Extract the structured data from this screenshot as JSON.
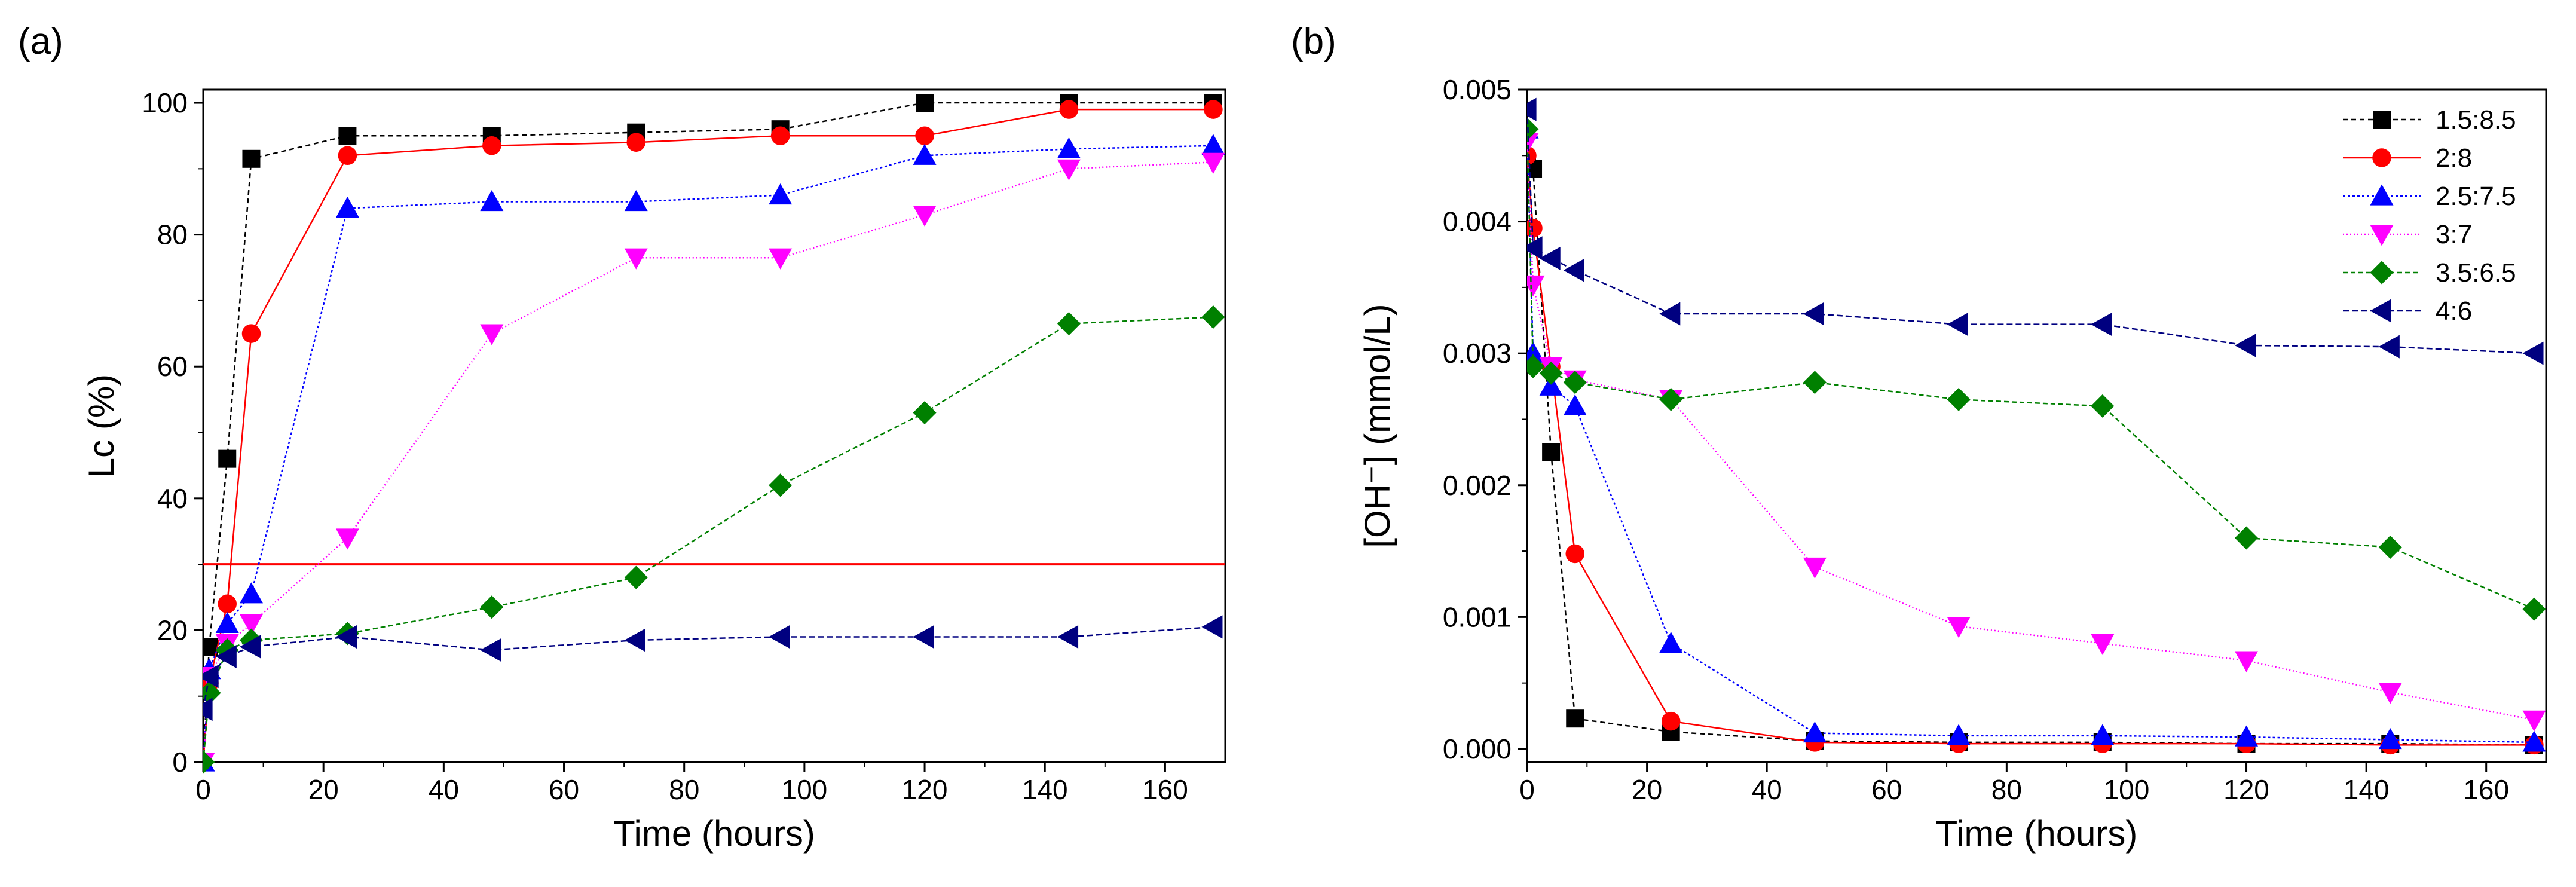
{
  "chart_data": [
    {
      "type": "line",
      "panel_label": "(a)",
      "xlabel": "Time (hours)",
      "ylabel": "Lc (%)",
      "xlim": [
        0,
        170
      ],
      "ylim": [
        0,
        102
      ],
      "xticks": [
        0,
        20,
        40,
        60,
        80,
        100,
        120,
        140,
        160
      ],
      "yticks": [
        0,
        20,
        40,
        60,
        80,
        100
      ],
      "reference_line": {
        "y": 30,
        "color": "#ff0000"
      },
      "series": [
        {
          "name": "1.5:8.5",
          "color": "#000000",
          "marker": "square",
          "dash": "8,6",
          "x": [
            0,
            1,
            4,
            8,
            24,
            48,
            72,
            96,
            120,
            144,
            168
          ],
          "y": [
            0,
            17.5,
            46,
            91.5,
            95,
            95,
            95.5,
            96,
            100,
            100,
            100
          ]
        },
        {
          "name": "2:8",
          "color": "#ff0000",
          "marker": "circle",
          "dash": "",
          "x": [
            0,
            1,
            4,
            8,
            24,
            48,
            72,
            96,
            120,
            144,
            168
          ],
          "y": [
            0,
            12,
            24,
            65,
            92,
            93.5,
            94,
            95,
            95,
            99,
            99
          ]
        },
        {
          "name": "2.5:7.5",
          "color": "#0000ff",
          "marker": "triangle-up",
          "dash": "4,4",
          "x": [
            0,
            1,
            4,
            8,
            24,
            48,
            72,
            96,
            120,
            144,
            168
          ],
          "y": [
            0,
            14,
            21,
            25.5,
            84,
            85,
            85,
            86,
            92,
            93,
            93.5
          ]
        },
        {
          "name": "3:7",
          "color": "#ff00ff",
          "marker": "triangle-down",
          "dash": "2,4",
          "x": [
            0,
            1,
            4,
            8,
            24,
            48,
            72,
            96,
            120,
            144,
            168
          ],
          "y": [
            0,
            13,
            18,
            21,
            34,
            65,
            76.5,
            76.5,
            83,
            90,
            91
          ]
        },
        {
          "name": "3.5:6.5",
          "color": "#008000",
          "marker": "diamond",
          "dash": "8,5",
          "x": [
            0,
            1,
            4,
            8,
            24,
            48,
            72,
            96,
            120,
            144,
            168
          ],
          "y": [
            0,
            10.5,
            17,
            18.5,
            19.5,
            23.5,
            28,
            42,
            53,
            66.5,
            67.5
          ]
        },
        {
          "name": "4:6",
          "color": "#000080",
          "marker": "triangle-left",
          "dash": "10,5",
          "x": [
            0,
            1,
            4,
            8,
            24,
            48,
            72,
            96,
            120,
            144,
            168
          ],
          "y": [
            8,
            13,
            16,
            17.5,
            19,
            17,
            18.5,
            19,
            19,
            19,
            20.5
          ]
        }
      ]
    },
    {
      "type": "line",
      "panel_label": "(b)",
      "xlabel": "Time (hours)",
      "ylabel": "[OH⁻] (mmol/L)",
      "xlim": [
        0,
        170
      ],
      "ylim": [
        -0.0001,
        0.005
      ],
      "xticks": [
        0,
        20,
        40,
        60,
        80,
        100,
        120,
        140,
        160
      ],
      "yticks": [
        0.0,
        0.001,
        0.002,
        0.003,
        0.004,
        0.005
      ],
      "ytick_labels": [
        "0.000",
        "0.001",
        "0.002",
        "0.003",
        "0.004",
        "0.005"
      ],
      "legend_position": "top-right",
      "series": [
        {
          "name": "1.5:8.5",
          "color": "#000000",
          "marker": "square",
          "dash": "8,6",
          "x": [
            0,
            1,
            4,
            8,
            24,
            48,
            72,
            96,
            120,
            144,
            168
          ],
          "y": [
            0.00445,
            0.0044,
            0.00225,
            0.00023,
            0.00013,
            6e-05,
            5e-05,
            5e-05,
            4e-05,
            4e-05,
            3e-05
          ]
        },
        {
          "name": "2:8",
          "color": "#ff0000",
          "marker": "circle",
          "dash": "",
          "x": [
            0,
            1,
            4,
            8,
            24,
            48,
            72,
            96,
            120,
            144,
            168
          ],
          "y": [
            0.0045,
            0.00395,
            0.0029,
            0.00148,
            0.00021,
            5e-05,
            4e-05,
            4e-05,
            4e-05,
            3e-05,
            3e-05
          ]
        },
        {
          "name": "2.5:7.5",
          "color": "#0000ff",
          "marker": "triangle-up",
          "dash": "4,4",
          "x": [
            0,
            1,
            4,
            8,
            24,
            48,
            72,
            96,
            120,
            144,
            168
          ],
          "y": [
            0.0047,
            0.003,
            0.00275,
            0.0026,
            0.0008,
            0.00012,
            0.0001,
            0.0001,
            9e-05,
            7e-05,
            5e-05
          ]
        },
        {
          "name": "3:7",
          "color": "#ff00ff",
          "marker": "triangle-down",
          "dash": "2,4",
          "x": [
            0,
            1,
            4,
            8,
            24,
            48,
            72,
            96,
            120,
            144,
            168
          ],
          "y": [
            0.0046,
            0.00352,
            0.0029,
            0.0028,
            0.00265,
            0.00138,
            0.00093,
            0.0008,
            0.00067,
            0.00043,
            0.00022
          ]
        },
        {
          "name": "3.5:6.5",
          "color": "#008000",
          "marker": "diamond",
          "dash": "8,5",
          "x": [
            0,
            1,
            4,
            8,
            24,
            48,
            72,
            96,
            120,
            144,
            168
          ],
          "y": [
            0.0047,
            0.0029,
            0.00285,
            0.00278,
            0.00265,
            0.00278,
            0.00265,
            0.0026,
            0.0016,
            0.00153,
            0.00106
          ]
        },
        {
          "name": "4:6",
          "color": "#000080",
          "marker": "triangle-left",
          "dash": "10,5",
          "x": [
            0,
            1,
            4,
            8,
            24,
            48,
            72,
            96,
            120,
            144,
            168
          ],
          "y": [
            0.00485,
            0.0038,
            0.00372,
            0.00363,
            0.0033,
            0.0033,
            0.00322,
            0.00322,
            0.00306,
            0.00305,
            0.003
          ]
        }
      ]
    }
  ]
}
